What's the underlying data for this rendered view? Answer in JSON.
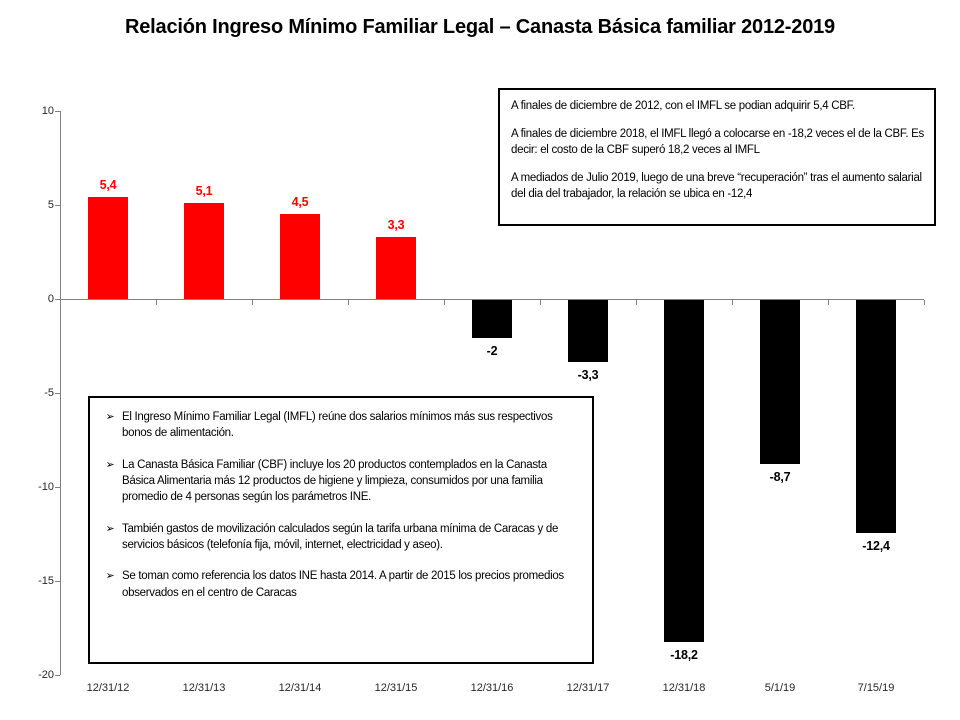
{
  "title": "Relación Ingreso Mínimo Familiar Legal – Canasta Básica familiar 2012-2019",
  "chart_data": {
    "type": "bar",
    "title": "Relación Ingreso Mínimo Familiar Legal – Canasta Básica familiar 2012-2019",
    "categories": [
      "12/31/12",
      "12/31/13",
      "12/31/14",
      "12/31/15",
      "12/31/16",
      "12/31/17",
      "12/31/18",
      "5/1/19",
      "7/15/19"
    ],
    "values": [
      5.4,
      5.1,
      4.5,
      3.3,
      -2,
      -3.3,
      -18.2,
      -8.7,
      -12.4
    ],
    "value_labels": [
      "5,4",
      "5,1",
      "4,5",
      "3,3",
      "-2",
      "-3,3",
      "-18,2",
      "-8,7",
      "-12,4"
    ],
    "xlabel": "",
    "ylabel": "",
    "ylim": [
      -20,
      10
    ],
    "yticks": [
      10,
      5,
      0,
      -5,
      -10,
      -15,
      -20
    ],
    "ytick_labels": [
      "10",
      "5",
      "0",
      "-5",
      "-10",
      "-15",
      "-20"
    ],
    "grid": false,
    "legend_position": "none",
    "positive_bar_color": "#FF0000",
    "negative_bar_color": "#000000",
    "positive_label_color": "#FF0000",
    "negative_label_color": "#000000",
    "axis_color": "#808080"
  },
  "summary_box": {
    "paragraphs": [
      "A finales de diciembre de 2012,  con el IMFL se podian adquirir 5,4 CBF.",
      "A finales de diciembre 2018,  el IMFL llegó a colocarse en -18,2 veces el de la CBF. Es decir: el costo de la CBF superó 18,2 veces al IMFL",
      "A mediados de Julio 2019,  luego de una breve “recuperación” tras el aumento salarial del dia del trabajador, la relación  se ubica en -12,4"
    ]
  },
  "notes_box": {
    "bullet_icon": "➢",
    "items": [
      "El Ingreso Mínimo Familiar Legal (IMFL) reúne dos salarios mínimos más sus respectivos bonos de alimentación.",
      "La Canasta Básica Familiar (CBF)  incluye los 20 productos contemplados en la Canasta Básica Alimentaria más 12 productos de higiene y limpieza, consumidos por una familia promedio de 4 personas según los parámetros INE.",
      "También gastos de movilización calculados según la tarifa urbana mínima de Caracas y de servicios básicos (telefonía fija, móvil, internet, electricidad y aseo).",
      "Se toman como referencia los datos INE hasta 2014.  A partir de 2015  los precios promedios observados en el centro de Caracas"
    ]
  }
}
